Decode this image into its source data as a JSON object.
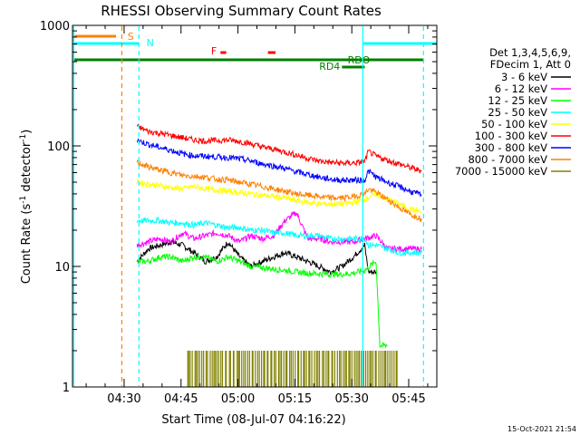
{
  "chart_data": {
    "type": "line",
    "title": "RHESSI Observing Summary Count Rates",
    "xlabel": "Start Time (08-Jul-07 04:16:22)",
    "ylabel_main": "Count Rate (s",
    "ylabel_sup1": "-1",
    "ylabel_mid": " detector",
    "ylabel_sup2": "-1",
    "ylabel_end": ")",
    "x_unit": "minutes since 04:16:22",
    "xlim": [
      0,
      96
    ],
    "ylim": [
      1,
      1000
    ],
    "yscale": "log",
    "x_ticks": [
      {
        "label": "04:30",
        "value": 13.6
      },
      {
        "label": "04:45",
        "value": 28.6
      },
      {
        "label": "05:00",
        "value": 43.6
      },
      {
        "label": "05:15",
        "value": 58.6
      },
      {
        "label": "05:30",
        "value": 73.6
      },
      {
        "label": "05:45",
        "value": 88.6
      }
    ],
    "y_ticks": [
      {
        "label": "1",
        "value": 1
      },
      {
        "label": "10",
        "value": 10
      },
      {
        "label": "100",
        "value": 100
      },
      {
        "label": "1000",
        "value": 1000
      }
    ],
    "legend_header": [
      "Det 1,3,4,5,6,9,",
      "FDecim 1, Att 0"
    ],
    "series": [
      {
        "name": "3 - 6 keV",
        "color": "#000000",
        "x": [
          17,
          20,
          23,
          26,
          29,
          32,
          35,
          38,
          41,
          44,
          47,
          50,
          53,
          56,
          59,
          62,
          65,
          68,
          71,
          74,
          77,
          78,
          80
        ],
        "y": [
          11,
          14,
          15,
          16,
          15,
          13,
          11,
          12,
          16,
          12,
          10,
          11,
          12,
          13,
          12,
          11,
          10,
          9,
          10,
          12,
          15,
          9,
          9
        ]
      },
      {
        "name": "6 - 12 keV",
        "color": "#ff00ff",
        "x": [
          17,
          20,
          23,
          26,
          29,
          32,
          35,
          38,
          41,
          44,
          47,
          50,
          53,
          56,
          59,
          62,
          65,
          68,
          71,
          74,
          77,
          80,
          83,
          86,
          92
        ],
        "y": [
          15,
          16,
          17,
          16,
          19,
          17,
          18,
          19,
          18,
          16,
          18,
          17,
          18,
          24,
          28,
          17,
          17,
          16,
          16,
          16,
          17,
          18,
          14,
          14,
          14
        ]
      },
      {
        "name": "12 - 25 keV",
        "color": "#00ff00",
        "x": [
          17,
          20,
          23,
          26,
          29,
          32,
          35,
          38,
          41,
          44,
          47,
          50,
          53,
          56,
          59,
          62,
          65,
          68,
          71,
          74,
          77,
          80,
          81,
          83
        ],
        "y": [
          11,
          11,
          12,
          12,
          11,
          12,
          12,
          11,
          12,
          11,
          10,
          9.8,
          9.5,
          9.3,
          9,
          8.8,
          8.7,
          8.6,
          8.6,
          8.8,
          9.3,
          11,
          2.2,
          2.2
        ]
      },
      {
        "name": "25 - 50 keV",
        "color": "#00ffff",
        "x": [
          17,
          20,
          23,
          26,
          29,
          32,
          35,
          38,
          41,
          44,
          47,
          50,
          53,
          56,
          59,
          62,
          65,
          68,
          71,
          74,
          77,
          78,
          80,
          83,
          86,
          89,
          92
        ],
        "y": [
          24,
          24,
          24,
          23,
          23,
          22,
          23,
          22,
          21,
          21,
          20,
          20,
          19,
          19,
          18,
          18,
          18,
          17,
          17,
          17,
          17,
          15,
          15,
          14,
          13,
          13,
          13
        ]
      },
      {
        "name": "50 - 100 keV",
        "color": "#ffff00",
        "x": [
          17,
          20,
          23,
          26,
          29,
          32,
          35,
          38,
          41,
          44,
          47,
          50,
          53,
          56,
          59,
          62,
          65,
          68,
          71,
          74,
          77,
          80,
          83,
          86,
          89,
          92
        ],
        "y": [
          50,
          48,
          47,
          45,
          44,
          46,
          44,
          43,
          42,
          41,
          40,
          39,
          38,
          37,
          35,
          34,
          33,
          33,
          33,
          34,
          36,
          40,
          36,
          33,
          30,
          28
        ]
      },
      {
        "name": "100 - 300 keV",
        "color": "#ff0000",
        "x": [
          17,
          20,
          23,
          26,
          29,
          32,
          35,
          38,
          41,
          44,
          47,
          50,
          53,
          56,
          59,
          62,
          65,
          68,
          71,
          74,
          77,
          78,
          80,
          83,
          86,
          89,
          92
        ],
        "y": [
          145,
          132,
          127,
          122,
          117,
          112,
          110,
          111,
          112,
          109,
          104,
          98,
          94,
          89,
          84,
          79,
          75,
          73,
          72,
          72,
          74,
          90,
          82,
          76,
          71,
          66,
          62
        ]
      },
      {
        "name": "300 - 800 keV",
        "color": "#0000ff",
        "x": [
          17,
          20,
          23,
          26,
          29,
          32,
          35,
          38,
          41,
          44,
          47,
          50,
          53,
          56,
          59,
          62,
          65,
          68,
          71,
          74,
          77,
          78,
          80,
          83,
          86,
          89,
          92
        ],
        "y": [
          112,
          103,
          97,
          92,
          86,
          83,
          82,
          81,
          80,
          78,
          75,
          71,
          68,
          65,
          61,
          58,
          55,
          53,
          52,
          52,
          52,
          62,
          55,
          50,
          46,
          42,
          39
        ]
      },
      {
        "name": "800 - 7000 keV",
        "color": "#ff8000",
        "x": [
          17,
          20,
          23,
          26,
          29,
          32,
          35,
          38,
          41,
          44,
          47,
          50,
          53,
          56,
          59,
          62,
          65,
          68,
          71,
          74,
          77,
          78,
          80,
          83,
          86,
          89,
          92
        ],
        "y": [
          73,
          67,
          63,
          60,
          57,
          56,
          55,
          53,
          52,
          50,
          48,
          46,
          44,
          42,
          40,
          39,
          38,
          37,
          37,
          38,
          40,
          44,
          41,
          36,
          31,
          27,
          25
        ]
      },
      {
        "name": "7000 - 15000 keV",
        "color": "#808000",
        "x": [
          30,
          34,
          38,
          42,
          46,
          50,
          54,
          58,
          62,
          66,
          70,
          74,
          78,
          82,
          86
        ],
        "y": [
          2,
          2,
          2,
          2,
          2,
          2,
          2,
          2,
          2,
          2,
          2,
          2,
          2,
          2,
          2
        ]
      }
    ],
    "annotations": [
      {
        "label": "S",
        "color": "#ff8000"
      },
      {
        "label": "N",
        "color": "#00ffff"
      },
      {
        "label": "F",
        "color": "#ff0000"
      },
      {
        "label": "RDO",
        "color": "#007f00"
      },
      {
        "label": "RD4",
        "color": "#007f00"
      }
    ],
    "grid": false,
    "legend_placement": "right"
  },
  "timestamp": "15-Oct-2021 21:54"
}
